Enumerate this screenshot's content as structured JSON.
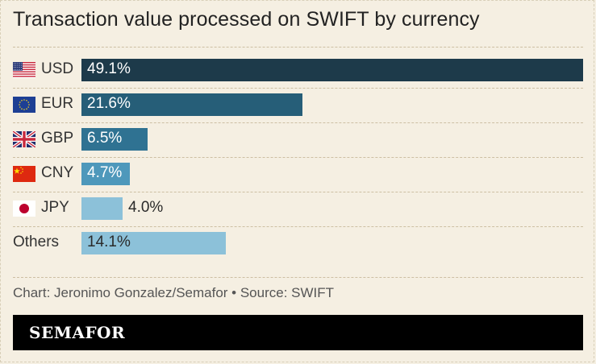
{
  "title": "Transaction value processed on SWIFT by currency",
  "source": "Chart: Jeronimo Gonzalez/Semafor • Source: SWIFT",
  "brand": "SEMAFOR",
  "chart_data": {
    "type": "bar",
    "orientation": "horizontal",
    "title": "Transaction value processed on SWIFT by currency",
    "categories": [
      "USD",
      "EUR",
      "GBP",
      "CNY",
      "JPY",
      "Others"
    ],
    "values": [
      49.1,
      21.6,
      6.5,
      4.7,
      4.0,
      14.1
    ],
    "value_labels": [
      "49.1%",
      "21.6%",
      "6.5%",
      "4.7%",
      "4.0%",
      "14.1%"
    ],
    "unit": "%",
    "flags": [
      "us-flag-icon",
      "eu-flag-icon",
      "uk-flag-icon",
      "china-flag-icon",
      "japan-flag-icon",
      ""
    ],
    "bar_colors": [
      "#1d3a4a",
      "#265e78",
      "#2f7292",
      "#4e98bb",
      "#8cc1d9",
      "#8cc1d9"
    ],
    "label_colors": [
      "#ffffff",
      "#ffffff",
      "#ffffff",
      "#ffffff",
      "#2a2a2a",
      "#2a2a2a"
    ],
    "grid": false,
    "legend": "none"
  }
}
